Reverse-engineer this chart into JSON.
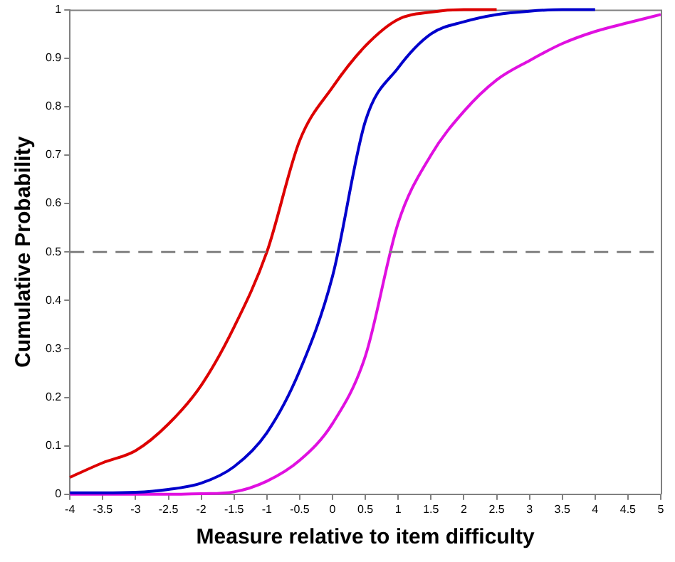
{
  "chart_data": {
    "type": "line",
    "xlabel": "Measure relative to item difficulty",
    "ylabel": "Cumulative Probability",
    "x": [
      -4,
      -3.5,
      -3,
      -2.5,
      -2,
      -1.5,
      -1,
      -0.5,
      0,
      0.5,
      1,
      1.5,
      2,
      2.5,
      3,
      3.5,
      4,
      4.5,
      5
    ],
    "series": [
      {
        "color": "#dd0000",
        "values": [
          0.035,
          0.065,
          0.09,
          0.145,
          0.225,
          0.345,
          0.5,
          0.73,
          0.84,
          0.925,
          0.98,
          0.995,
          1,
          1,
          null,
          null,
          null,
          null,
          null
        ]
      },
      {
        "color": "#0000cc",
        "values": [
          0.003,
          0.003,
          0.004,
          0.01,
          0.023,
          0.057,
          0.127,
          0.255,
          0.45,
          0.77,
          0.88,
          0.95,
          0.975,
          0.99,
          0.997,
          1,
          1,
          null,
          null
        ]
      },
      {
        "color": "#e010e0",
        "values": [
          0,
          0,
          0,
          0,
          0.001,
          0.005,
          0.027,
          0.07,
          0.146,
          0.285,
          0.56,
          0.7,
          0.79,
          0.855,
          0.895,
          0.93,
          0.955,
          0.973,
          0.99
        ]
      }
    ],
    "xlim": [
      -4,
      5
    ],
    "xticks": [
      -4,
      -3.5,
      -3,
      -2.5,
      -2,
      -1.5,
      -1,
      -0.5,
      0,
      0.5,
      1,
      1.5,
      2,
      2.5,
      3,
      3.5,
      4,
      4.5,
      5
    ],
    "ylim": [
      0,
      1
    ],
    "yticks": [
      0,
      0.1,
      0.2,
      0.3,
      0.4,
      0.5,
      0.6,
      0.7,
      0.8,
      0.9,
      1
    ],
    "ref_lines": [
      {
        "axis": "y",
        "value": 0.5,
        "color": "#808080",
        "line_style": "dashed"
      }
    ],
    "marker": "none",
    "line_style": "solid",
    "legend": false,
    "grid": false
  }
}
